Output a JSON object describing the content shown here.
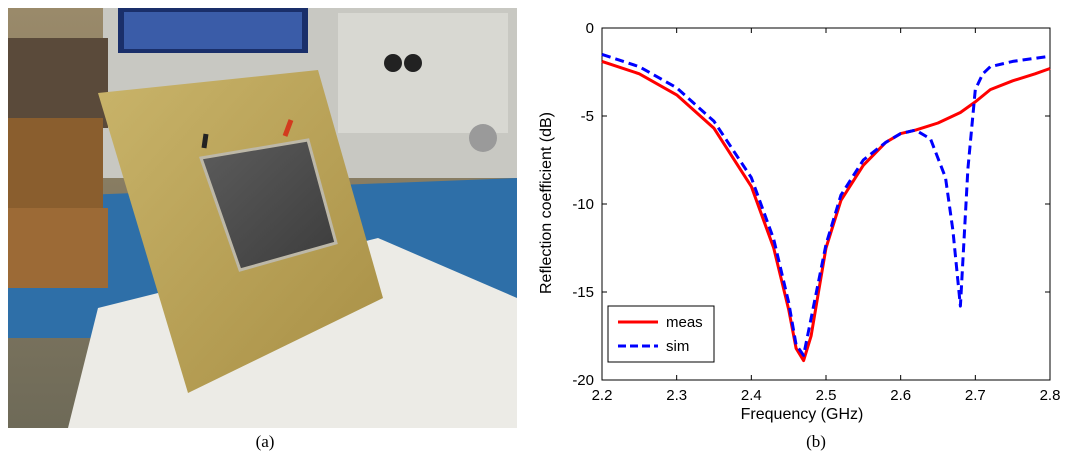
{
  "captions": {
    "a": "(a)",
    "b": "(b)"
  },
  "colors": {
    "meas": "#ff0000",
    "sim": "#0000ff"
  },
  "chart_data": {
    "type": "line",
    "xlabel": "Frequency (GHz)",
    "ylabel": "Reflection coefficient (dB)",
    "xlim": [
      2.2,
      2.8
    ],
    "ylim": [
      -20,
      0
    ],
    "xticks": [
      2.2,
      2.3,
      2.4,
      2.5,
      2.6,
      2.7,
      2.8
    ],
    "xtick_labels": [
      "2.2",
      "2.3",
      "2.4",
      "2.5",
      "2.6",
      "2.7",
      "2.8"
    ],
    "yticks": [
      0,
      -5,
      -10,
      -15,
      -20
    ],
    "ytick_labels": [
      "0",
      "-5",
      "-10",
      "-15",
      "-20"
    ],
    "grid": false,
    "legend_position": "bottom-left",
    "series": [
      {
        "name": "meas",
        "style": "solid",
        "color": "#ff0000",
        "x": [
          2.2,
          2.25,
          2.3,
          2.35,
          2.4,
          2.43,
          2.45,
          2.46,
          2.47,
          2.48,
          2.49,
          2.5,
          2.52,
          2.55,
          2.58,
          2.6,
          2.62,
          2.65,
          2.68,
          2.7,
          2.72,
          2.75,
          2.78,
          2.8
        ],
        "y": [
          -1.9,
          -2.6,
          -3.8,
          -5.7,
          -9.0,
          -12.5,
          -16.0,
          -18.2,
          -18.9,
          -17.5,
          -15.0,
          -12.5,
          -9.8,
          -7.8,
          -6.5,
          -6.0,
          -5.8,
          -5.4,
          -4.8,
          -4.2,
          -3.5,
          -3.0,
          -2.6,
          -2.3
        ]
      },
      {
        "name": "sim",
        "style": "dashed",
        "color": "#0000ff",
        "x": [
          2.2,
          2.25,
          2.3,
          2.35,
          2.4,
          2.43,
          2.45,
          2.46,
          2.47,
          2.48,
          2.5,
          2.52,
          2.55,
          2.58,
          2.6,
          2.62,
          2.64,
          2.66,
          2.67,
          2.68,
          2.69,
          2.7,
          2.71,
          2.72,
          2.75,
          2.8
        ],
        "y": [
          -1.5,
          -2.2,
          -3.4,
          -5.3,
          -8.5,
          -12.0,
          -15.6,
          -18.0,
          -18.6,
          -16.5,
          -12.3,
          -9.5,
          -7.5,
          -6.5,
          -6.0,
          -5.8,
          -6.3,
          -8.5,
          -11.5,
          -15.8,
          -8.0,
          -3.5,
          -2.6,
          -2.2,
          -1.9,
          -1.6
        ]
      }
    ]
  }
}
